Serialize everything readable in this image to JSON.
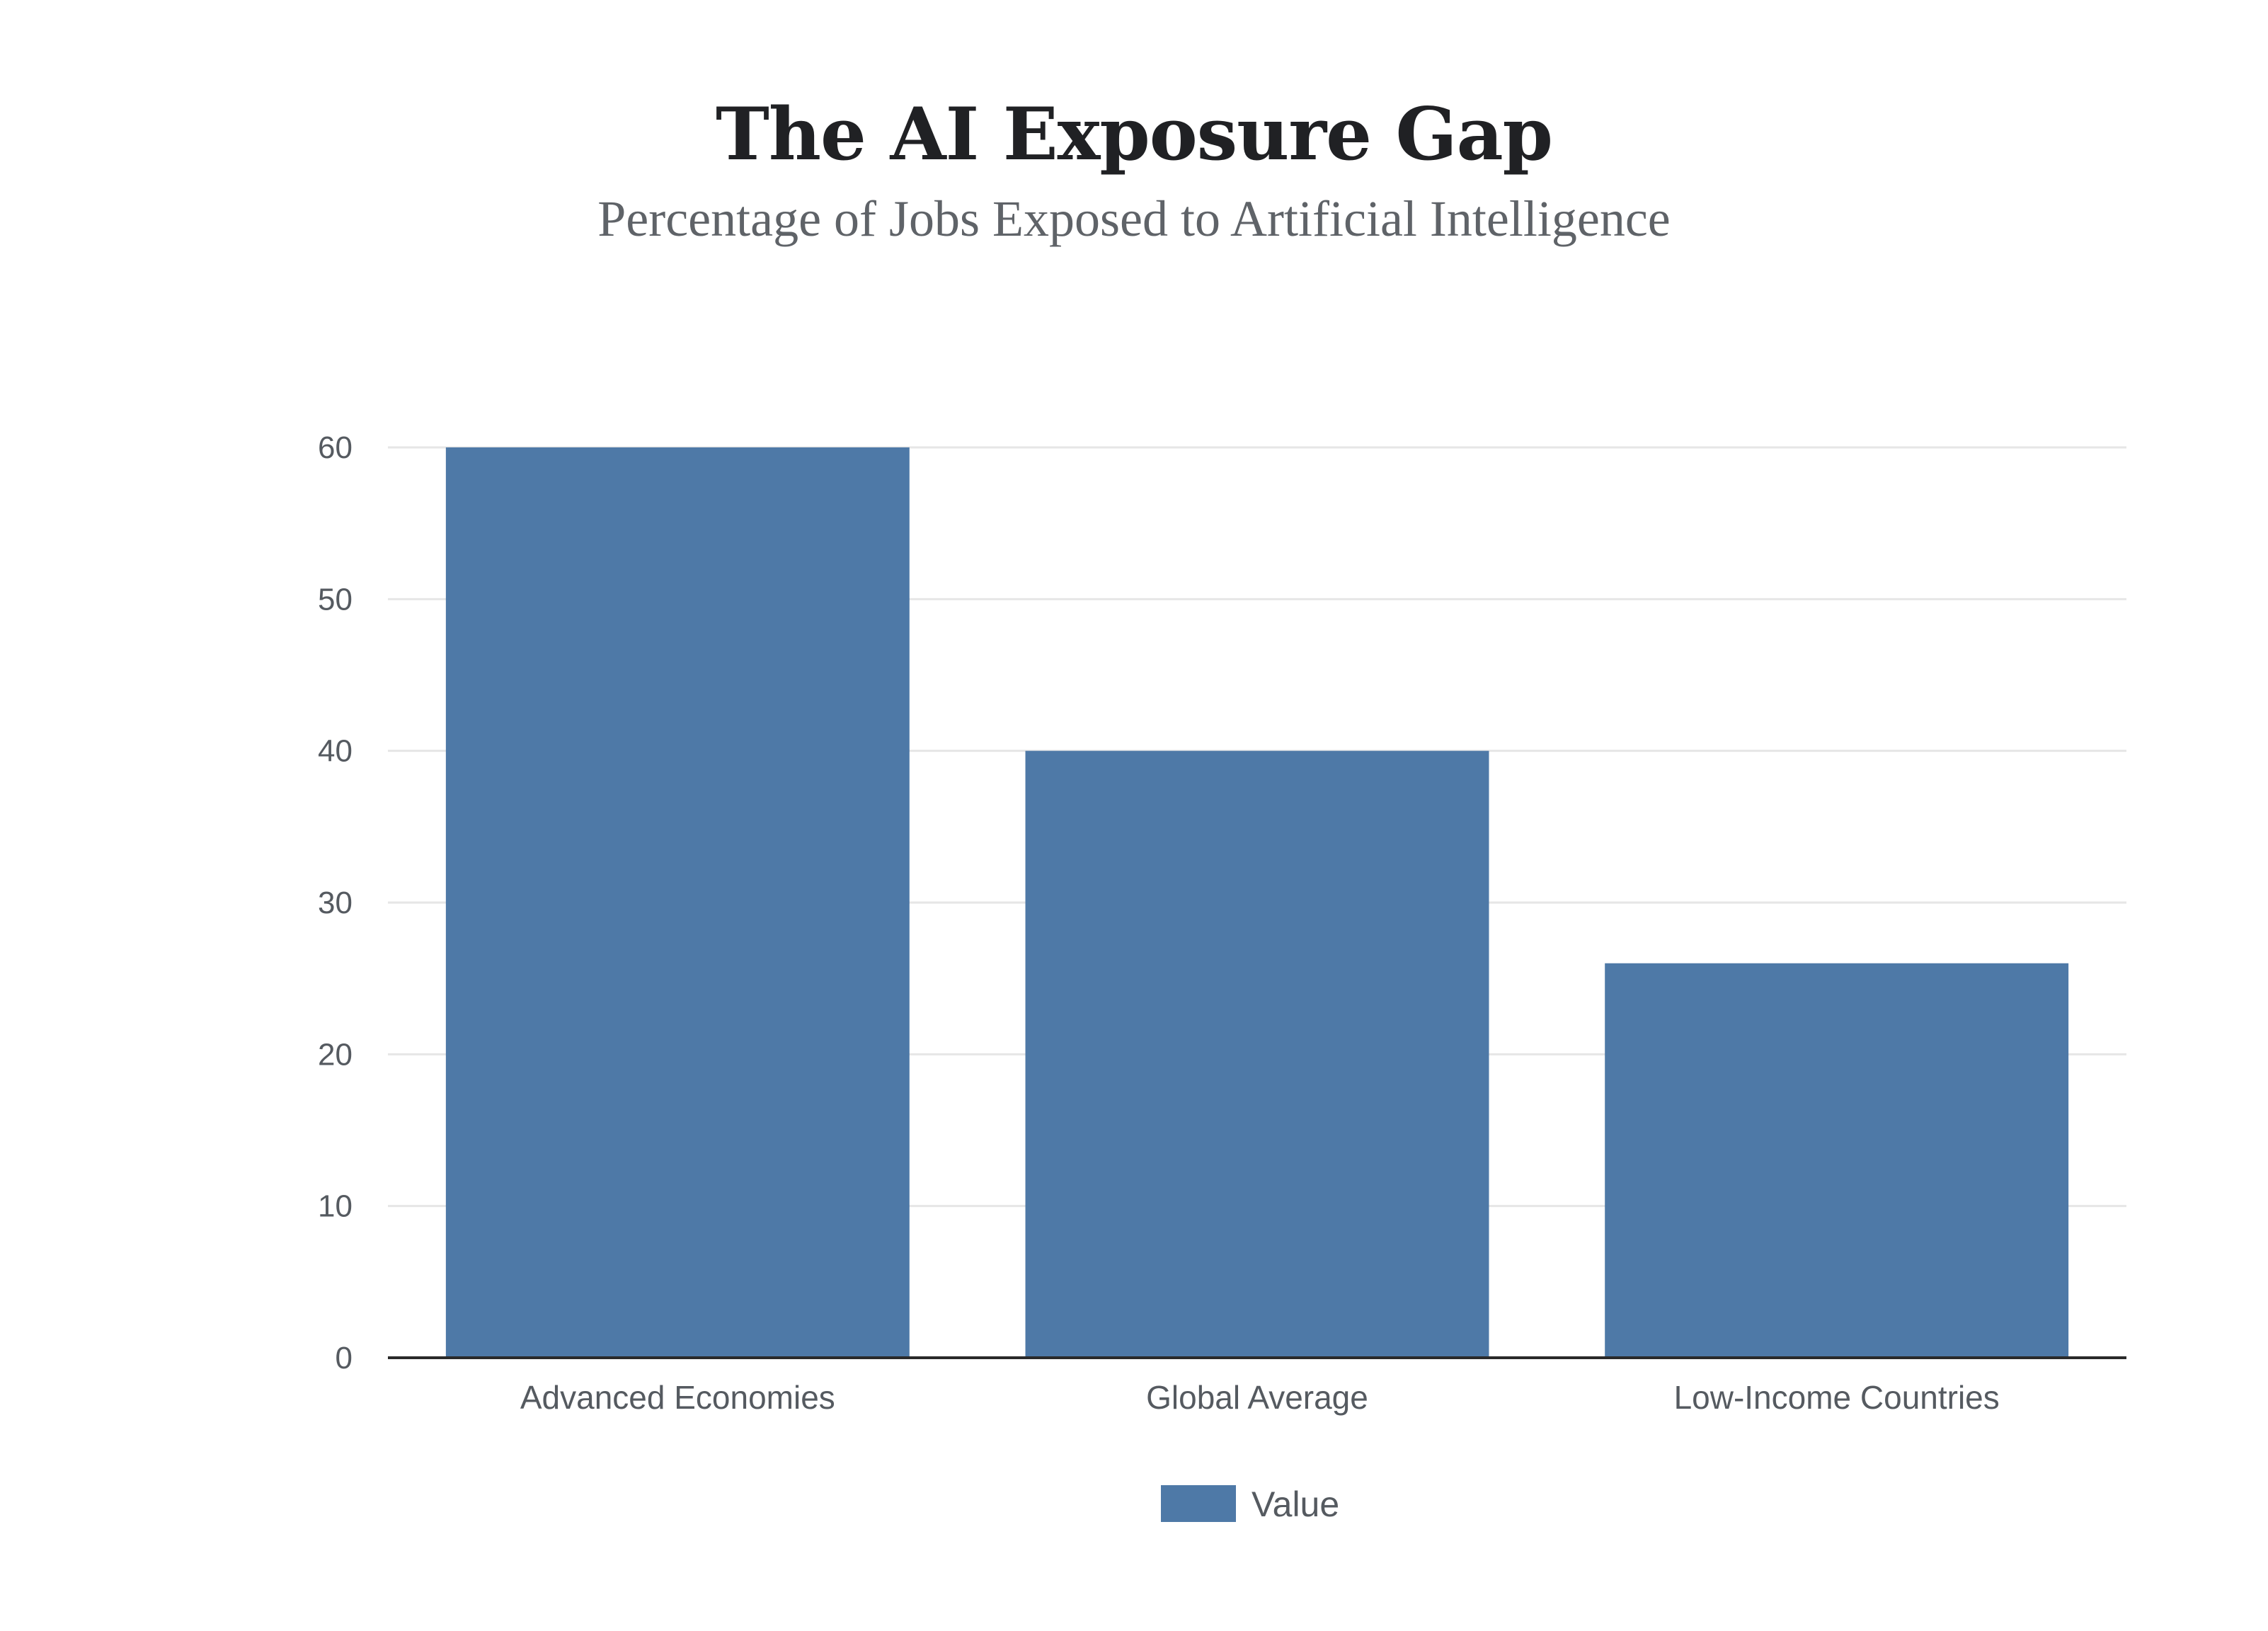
{
  "chart_data": {
    "type": "bar",
    "title": "The AI Exposure Gap",
    "subtitle": "Percentage of Jobs Exposed to Artificial Intelligence",
    "xlabel": "",
    "ylabel": "",
    "categories": [
      "Advanced Economies",
      "Global Average",
      "Low-Income Countries"
    ],
    "series": [
      {
        "name": "Value",
        "values": [
          60,
          40,
          26
        ],
        "color": "#4e79a7"
      }
    ],
    "ylim": [
      0,
      60
    ],
    "yticks": [
      0,
      10,
      20,
      30,
      40,
      50,
      60
    ],
    "grid": true,
    "legend_position": "bottom-center"
  }
}
